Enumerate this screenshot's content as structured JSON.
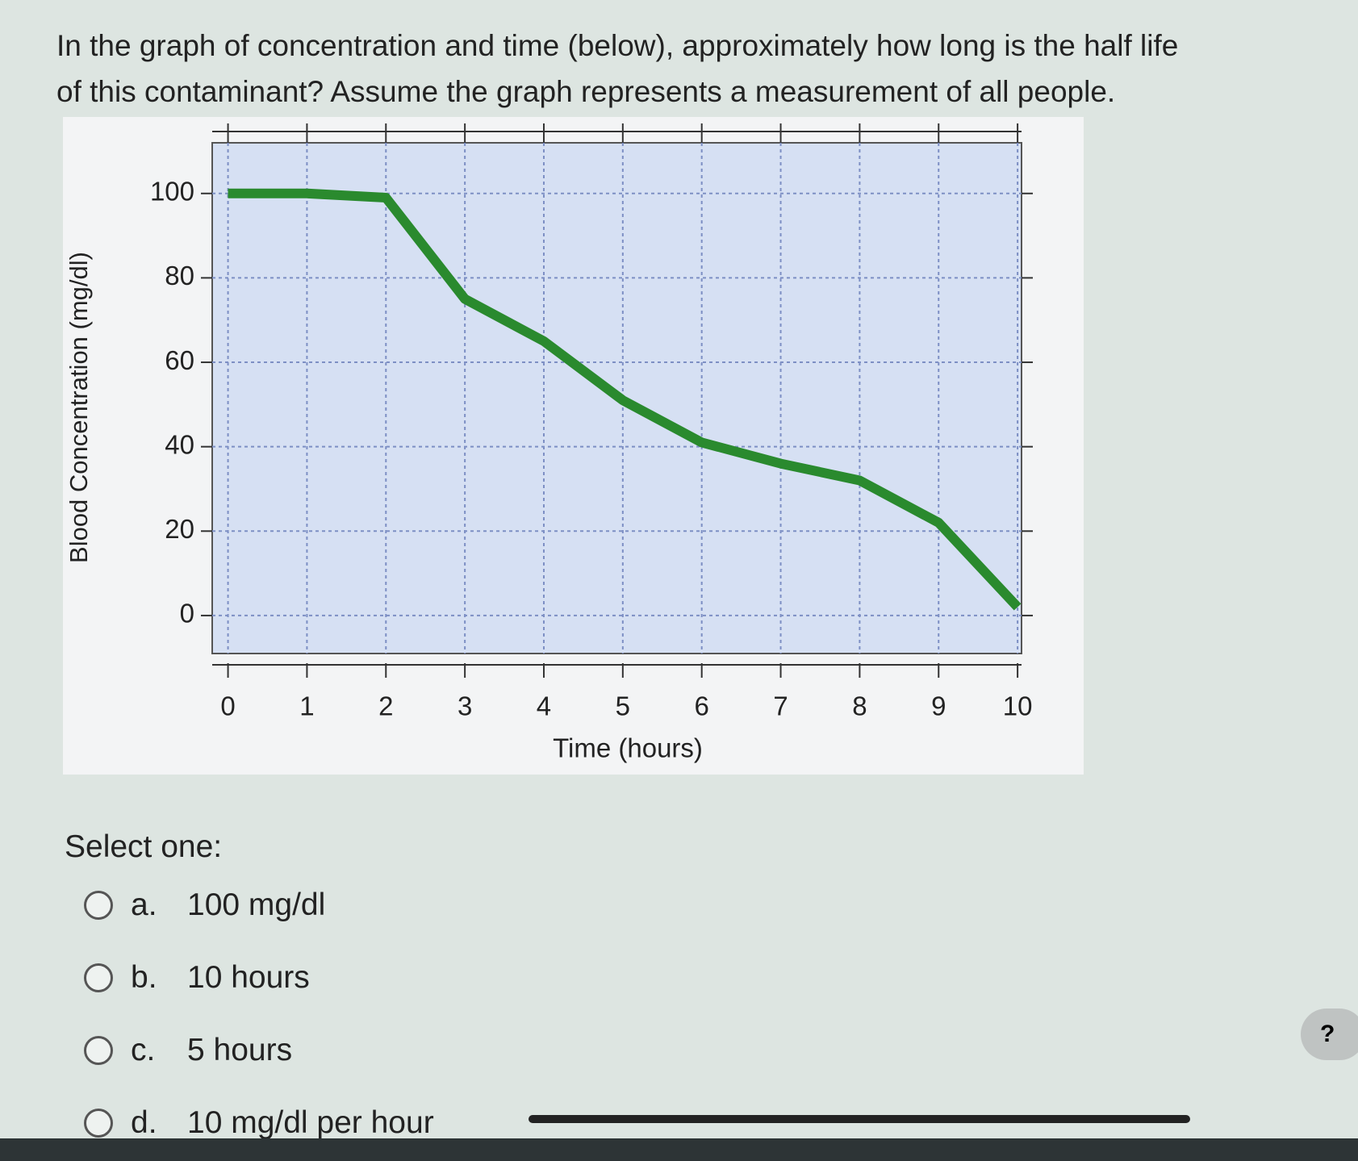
{
  "question": [
    "In the graph of concentration and time (below), approximately how long is the half life",
    "of this contaminant?  Assume the graph represents a measurement of all people."
  ],
  "chart_data": {
    "type": "line",
    "x_label": "Time (hours)",
    "y_label": "Blood Concentration (mg/dl)",
    "x": [
      0,
      1,
      2,
      3,
      4,
      5,
      6,
      7,
      8,
      9,
      10
    ],
    "series": [
      {
        "name": "Blood concentration",
        "color": "#2a8a2e",
        "values": [
          100,
          100,
          99,
          75,
          65,
          51,
          41,
          36,
          32,
          22,
          2
        ]
      }
    ],
    "xlim": [
      -0.2,
      10.05
    ],
    "ylim": [
      -9,
      112
    ],
    "xticks": [
      0,
      1,
      2,
      3,
      4,
      5,
      6,
      7,
      8,
      9,
      10
    ],
    "yticks": [
      0,
      20,
      40,
      60,
      80,
      100
    ],
    "grid": true
  },
  "prompt": "Select one:",
  "options": [
    {
      "letter": "a.",
      "text": "100 mg/dl"
    },
    {
      "letter": "b.",
      "text": "10 hours"
    },
    {
      "letter": "c.",
      "text": "5 hours"
    },
    {
      "letter": "d.",
      "text": "10 mg/dl per hour"
    }
  ],
  "help": "?"
}
